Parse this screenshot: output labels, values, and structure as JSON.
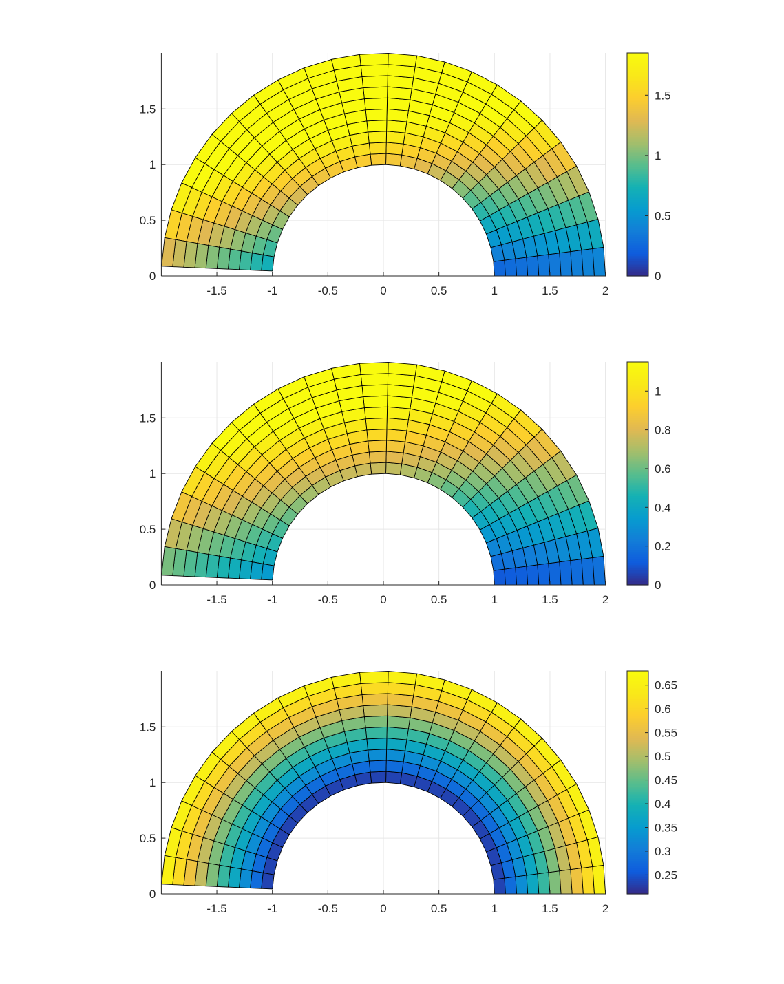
{
  "chart_data": [
    {
      "type": "heatmap",
      "title": "",
      "xlabel": "",
      "ylabel": "",
      "xlim": [
        -2,
        2
      ],
      "ylim": [
        0,
        2
      ],
      "grid": true,
      "mesh": {
        "r_inner": 1,
        "r_outer": 2,
        "radial_divisions": 10,
        "theta_start_deg": 0,
        "theta_end_deg": 177.5,
        "angular_divisions": 24
      },
      "color_function": "r*sin(theta) - 0.2*r*cos(theta) + 0.32*r + 0.06",
      "clim": [
        0,
        1.85
      ],
      "colorbar": {
        "ticks": [
          0,
          0.5,
          1,
          1.5
        ],
        "tick_labels": [
          "0",
          "0.5",
          "1",
          "1.5"
        ]
      },
      "xticks": [
        -1.5,
        -1,
        -0.5,
        0,
        0.5,
        1,
        1.5,
        2
      ],
      "xtick_labels": [
        "-1.5",
        "-1",
        "-0.5",
        "0",
        "0.5",
        "1",
        "1.5",
        "2"
      ],
      "yticks": [
        0,
        0.5,
        1,
        1.5
      ],
      "ytick_labels": [
        "0",
        "0.5",
        "1",
        "1.5"
      ]
    },
    {
      "type": "heatmap",
      "title": "",
      "xlabel": "",
      "ylabel": "",
      "xlim": [
        -2,
        2
      ],
      "ylim": [
        0,
        2
      ],
      "grid": true,
      "mesh": {
        "r_inner": 1,
        "r_outer": 2,
        "radial_divisions": 10,
        "theta_start_deg": 0,
        "theta_end_deg": 177.5,
        "angular_divisions": 24
      },
      "color_function": "0.55*r*sin(theta) - 0.1*r*cos(theta) + 0.15*r + 0.02",
      "clim": [
        0,
        1.15
      ],
      "colorbar": {
        "ticks": [
          0,
          0.2,
          0.4,
          0.6,
          0.8,
          1
        ],
        "tick_labels": [
          "0",
          "0.2",
          "0.4",
          "0.6",
          "0.8",
          "1"
        ]
      },
      "xticks": [
        -1.5,
        -1,
        -0.5,
        0,
        0.5,
        1,
        1.5,
        2
      ],
      "xtick_labels": [
        "-1.5",
        "-1",
        "-0.5",
        "0",
        "0.5",
        "1",
        "1.5",
        "2"
      ],
      "yticks": [
        0,
        0.5,
        1,
        1.5
      ],
      "ytick_labels": [
        "0",
        "0.5",
        "1",
        "1.5"
      ]
    },
    {
      "type": "heatmap",
      "title": "",
      "xlabel": "",
      "ylabel": "",
      "xlim": [
        -2,
        2
      ],
      "ylim": [
        0,
        2
      ],
      "grid": true,
      "mesh": {
        "r_inner": 1,
        "r_outer": 2,
        "radial_divisions": 10,
        "theta_start_deg": 0,
        "theta_end_deg": 177.5,
        "angular_divisions": 24
      },
      "color_function": "0.21 + 0.47*(r-1)/1 (radial only)",
      "clim": [
        0.21,
        0.68
      ],
      "colorbar": {
        "ticks": [
          0.25,
          0.3,
          0.35,
          0.4,
          0.45,
          0.5,
          0.55,
          0.6,
          0.65
        ],
        "tick_labels": [
          "0.25",
          "0.3",
          "0.35",
          "0.4",
          "0.45",
          "0.5",
          "0.55",
          "0.6",
          "0.65"
        ]
      },
      "xticks": [
        -1.5,
        -1,
        -0.5,
        0,
        0.5,
        1,
        1.5,
        2
      ],
      "xtick_labels": [
        "-1.5",
        "-1",
        "-0.5",
        "0",
        "0.5",
        "1",
        "1.5",
        "2"
      ],
      "yticks": [
        0,
        0.5,
        1,
        1.5
      ],
      "ytick_labels": [
        "0",
        "0.5",
        "1",
        "1.5"
      ]
    }
  ],
  "colormap": "parula"
}
